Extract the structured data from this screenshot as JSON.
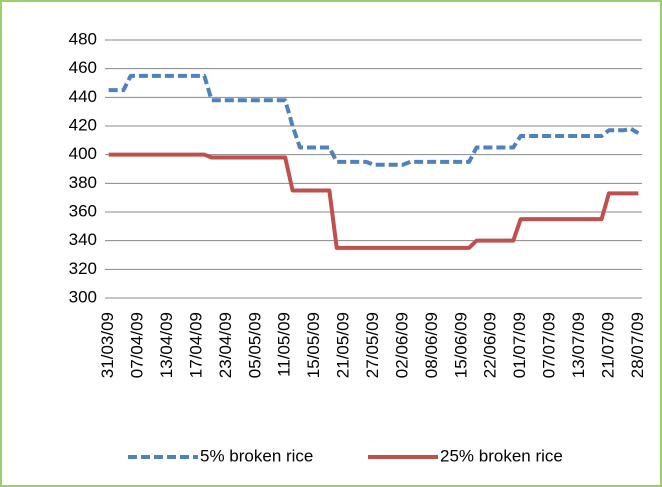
{
  "chart_data": {
    "type": "line",
    "categories": [
      "31/03/09",
      null,
      null,
      null,
      "07/04/09",
      null,
      null,
      null,
      "13/04/09",
      null,
      null,
      null,
      "17/04/09",
      null,
      null,
      null,
      "23/04/09",
      null,
      null,
      null,
      "05/05/09",
      null,
      null,
      null,
      "11/05/09",
      null,
      null,
      null,
      "15/05/09",
      null,
      null,
      null,
      "21/05/09",
      null,
      null,
      null,
      "27/05/09",
      null,
      null,
      null,
      "02/06/09",
      null,
      null,
      null,
      "08/06/09",
      null,
      null,
      null,
      "15/06/09",
      null,
      null,
      null,
      "22/06/09",
      null,
      null,
      null,
      "01/07/09",
      null,
      null,
      null,
      "07/07/09",
      null,
      null,
      null,
      "13/07/09",
      null,
      null,
      null,
      "21/07/09",
      null,
      null,
      null,
      "28/07/09"
    ],
    "series": [
      {
        "name": "5% broken rice",
        "color": "#4f81bd",
        "dashed": true,
        "values": [
          445,
          445,
          445,
          455,
          455,
          455,
          455,
          455,
          455,
          455,
          455,
          455,
          455,
          455,
          438,
          438,
          438,
          438,
          438,
          438,
          438,
          438,
          438,
          438,
          438,
          420,
          405,
          405,
          405,
          405,
          405,
          395,
          395,
          395,
          395,
          395,
          393,
          393,
          393,
          393,
          393,
          395,
          395,
          395,
          395,
          395,
          395,
          395,
          395,
          395,
          405,
          405,
          405,
          405,
          405,
          405,
          413,
          413,
          413,
          413,
          413,
          413,
          413,
          413,
          413,
          413,
          413,
          413,
          417,
          417,
          417,
          418,
          415
        ]
      },
      {
        "name": "25% broken rice",
        "color": "#c0504d",
        "dashed": false,
        "values": [
          400,
          400,
          400,
          400,
          400,
          400,
          400,
          400,
          400,
          400,
          400,
          400,
          400,
          400,
          398,
          398,
          398,
          398,
          398,
          398,
          398,
          398,
          398,
          398,
          398,
          375,
          375,
          375,
          375,
          375,
          375,
          335,
          335,
          335,
          335,
          335,
          335,
          335,
          335,
          335,
          335,
          335,
          335,
          335,
          335,
          335,
          335,
          335,
          335,
          335,
          340,
          340,
          340,
          340,
          340,
          340,
          355,
          355,
          355,
          355,
          355,
          355,
          355,
          355,
          355,
          355,
          355,
          355,
          373,
          373,
          373,
          373,
          373
        ]
      }
    ],
    "ylim": [
      300,
      480
    ],
    "yticks": [
      300,
      320,
      340,
      360,
      380,
      400,
      420,
      440,
      460,
      480
    ],
    "grid": true,
    "legend": "bottom"
  }
}
